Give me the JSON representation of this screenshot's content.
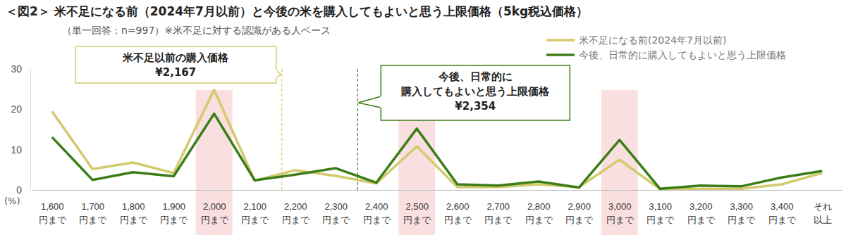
{
  "chart_data": {
    "type": "line",
    "title": "＜図2＞ 米不足になる前（2024年7月以前）と今後の米を購入してもよいと思う上限価格（5kg税込価格）",
    "subtitle": "（単一回答：n=997）※米不足に対する認識がある人ベース",
    "y_label": "(%)",
    "categories": [
      "1,600\n円まで",
      "1,700\n円まで",
      "1,800\n円まで",
      "1,900\n円まで",
      "2,000\n円まで",
      "2,100\n円まで",
      "2,200\n円まで",
      "2,300\n円まで",
      "2,400\n円まで",
      "2,500\n円まで",
      "2,600\n円まで",
      "2,700\n円まで",
      "2,800\n円まで",
      "2,900\n円まで",
      "3,000\n円まで",
      "3,100\n円まで",
      "3,200\n円まで",
      "3,300\n円まで",
      "3,400\n円まで",
      "それ\n以上"
    ],
    "series": [
      {
        "name": "米不足になる前(2024年7月以前)",
        "color": "#d3ca6c",
        "values": [
          19.5,
          5.2,
          6.8,
          4.2,
          24.8,
          2.3,
          4.9,
          3.5,
          1.6,
          10.8,
          0.7,
          0.7,
          1.4,
          0.7,
          7.5,
          0.2,
          0.3,
          0.3,
          1.4,
          4.2
        ]
      },
      {
        "name": "今後、日常的に購入してもよいと思う上限価格",
        "color": "#3b7d17",
        "values": [
          13.1,
          2.5,
          4.4,
          3.4,
          18.9,
          2.4,
          3.8,
          5.4,
          1.8,
          15.2,
          1.4,
          1.1,
          2.1,
          0.6,
          12.4,
          0.3,
          1.1,
          0.9,
          3.1,
          4.7
        ]
      }
    ],
    "ylim": [
      0,
      30
    ],
    "yticks": [
      0,
      10,
      20,
      30
    ],
    "grid": false,
    "legend": "top-right",
    "highlights": [
      "2,000\n円まで",
      "2,500\n円まで",
      "3,000\n円まで"
    ],
    "annotations": [
      {
        "text": "米不足以前の購入価格",
        "value": 2167,
        "label": "¥2,167",
        "color": "#d3ca6c"
      },
      {
        "text": "今後、日常的に\n購入してもよいと思う上限価格",
        "value": 2354,
        "label": "¥2,354",
        "color": "#3b7d17"
      }
    ]
  }
}
